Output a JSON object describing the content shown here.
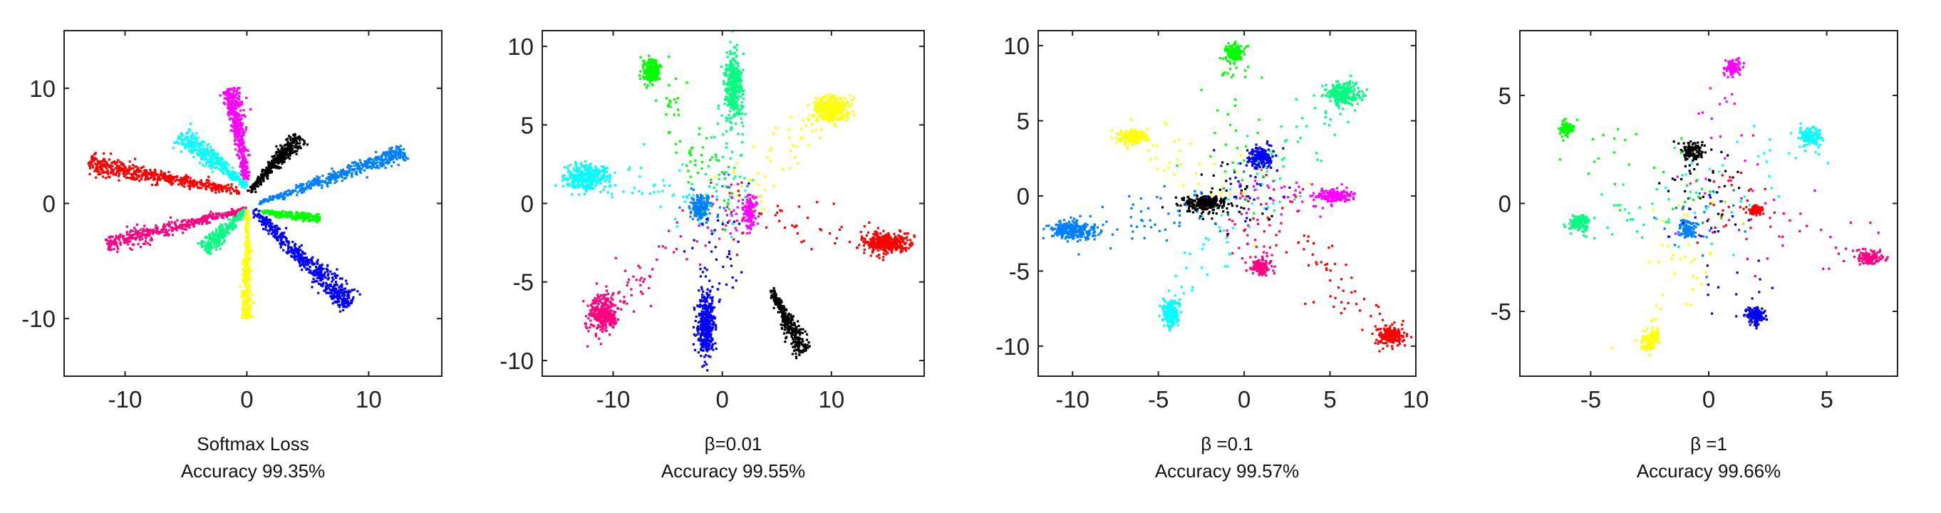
{
  "colors": {
    "c0": "#ff0000",
    "c1": "#ff0080",
    "c2": "#00ffff",
    "c3": "#ff00ff",
    "c4": "#000000",
    "c5": "#0080ff",
    "c6": "#00ff80",
    "c7": "#0000ff",
    "c8": "#00ff00",
    "c9": "#ffff00"
  },
  "chart_data": [
    {
      "type": "scatter",
      "caption_line1": "Softmax Loss",
      "caption_line2": "Accuracy 99.35%",
      "xlim": [
        -15,
        16
      ],
      "ylim": [
        -15,
        15
      ],
      "xticks": [
        -10,
        0,
        10
      ],
      "yticks": [
        -10,
        0,
        10
      ],
      "grid": false,
      "series": [
        {
          "color": "c0",
          "shape": "ray",
          "from": [
            -0.5,
            1.0
          ],
          "to": [
            -13.0,
            3.5
          ],
          "count": 500,
          "spread": 0.45
        },
        {
          "color": "c1",
          "shape": "ray",
          "from": [
            0,
            -0.5
          ],
          "to": [
            -11.5,
            -3.5
          ],
          "count": 420,
          "spread": 0.4
        },
        {
          "color": "c2",
          "shape": "ray",
          "from": [
            0,
            1.5
          ],
          "to": [
            -5.5,
            6.0
          ],
          "count": 380,
          "spread": 0.5
        },
        {
          "color": "c3",
          "shape": "ray",
          "from": [
            0,
            2.0
          ],
          "to": [
            -1.3,
            10.0
          ],
          "count": 420,
          "spread": 0.4
        },
        {
          "color": "c4",
          "shape": "ray",
          "from": [
            0.2,
            1.0
          ],
          "to": [
            4.3,
            5.8
          ],
          "count": 380,
          "spread": 0.35
        },
        {
          "color": "c5",
          "shape": "ray",
          "from": [
            1.0,
            0.0
          ],
          "to": [
            13.0,
            4.5
          ],
          "count": 460,
          "spread": 0.4
        },
        {
          "color": "c6",
          "shape": "ray",
          "from": [
            0,
            -0.5
          ],
          "to": [
            -3.5,
            -4.0
          ],
          "count": 250,
          "spread": 0.4
        },
        {
          "color": "c8",
          "shape": "ray",
          "from": [
            1.0,
            -0.7
          ],
          "to": [
            6.0,
            -1.3
          ],
          "count": 220,
          "spread": 0.25
        },
        {
          "color": "c7",
          "shape": "ray",
          "from": [
            0.5,
            -0.5
          ],
          "to": [
            8.5,
            -8.8
          ],
          "count": 520,
          "spread": 0.55
        },
        {
          "color": "c9",
          "shape": "ray",
          "from": [
            0,
            -0.5
          ],
          "to": [
            0.0,
            -10.0
          ],
          "count": 300,
          "spread": 0.25
        }
      ]
    },
    {
      "type": "scatter",
      "caption_line1": "β=0.01",
      "caption_line2": "Accuracy 99.55%",
      "xlim": [
        -16.5,
        18.5
      ],
      "ylim": [
        -11,
        11
      ],
      "xticks": [
        -10,
        0,
        10
      ],
      "yticks": [
        -10,
        -5,
        0,
        5,
        10
      ],
      "grid": false,
      "series": [
        {
          "color": "c0",
          "shape": "blob",
          "center": [
            15.0,
            -2.5
          ],
          "sd": [
            1.0,
            0.3
          ],
          "count": 380,
          "stray": 60
        },
        {
          "color": "c1",
          "shape": "blob",
          "center": [
            -11.0,
            -7.0
          ],
          "sd": [
            0.7,
            0.6
          ],
          "count": 330,
          "stray": 60
        },
        {
          "color": "c2",
          "shape": "blob",
          "center": [
            -12.5,
            1.7
          ],
          "sd": [
            1.0,
            0.4
          ],
          "count": 330,
          "stray": 60
        },
        {
          "color": "c3",
          "shape": "blob",
          "center": [
            2.5,
            -0.5
          ],
          "sd": [
            0.3,
            0.5
          ],
          "count": 150,
          "stray": 30
        },
        {
          "color": "c4",
          "shape": "ray",
          "from": [
            4.5,
            -5.5
          ],
          "to": [
            7.5,
            -9.5
          ],
          "count": 320,
          "spread": 0.4
        },
        {
          "color": "c5",
          "shape": "blob",
          "center": [
            -2.0,
            -0.3
          ],
          "sd": [
            0.4,
            0.4
          ],
          "count": 170,
          "stray": 20
        },
        {
          "color": "c6",
          "shape": "blob",
          "center": [
            1.0,
            7.5
          ],
          "sd": [
            0.4,
            1.0
          ],
          "count": 330,
          "stray": 60
        },
        {
          "color": "c7",
          "shape": "blob",
          "center": [
            -1.5,
            -7.8
          ],
          "sd": [
            0.4,
            1.0
          ],
          "count": 380,
          "stray": 50
        },
        {
          "color": "c8",
          "shape": "blob",
          "center": [
            -6.5,
            8.5
          ],
          "sd": [
            0.4,
            0.4
          ],
          "count": 220,
          "stray": 60
        },
        {
          "color": "c9",
          "shape": "blob",
          "center": [
            10.0,
            6.0
          ],
          "sd": [
            0.8,
            0.4
          ],
          "count": 330,
          "stray": 60
        }
      ]
    },
    {
      "type": "scatter",
      "caption_line1": "β =0.1",
      "caption_line2": "Accuracy 99.57%",
      "xlim": [
        -12,
        10
      ],
      "ylim": [
        -12,
        11
      ],
      "xticks": [
        -10,
        -5,
        0,
        5,
        10
      ],
      "yticks": [
        -10,
        -5,
        0,
        5,
        10
      ],
      "grid": false,
      "series": [
        {
          "color": "c0",
          "shape": "blob",
          "center": [
            8.5,
            -9.3
          ],
          "sd": [
            0.4,
            0.3
          ],
          "count": 200,
          "stray": 70
        },
        {
          "color": "c1",
          "shape": "blob",
          "center": [
            1.0,
            -4.7
          ],
          "sd": [
            0.25,
            0.3
          ],
          "count": 130,
          "stray": 40
        },
        {
          "color": "c2",
          "shape": "blob",
          "center": [
            -4.3,
            -7.8
          ],
          "sd": [
            0.25,
            0.5
          ],
          "count": 180,
          "stray": 40
        },
        {
          "color": "c3",
          "shape": "blob",
          "center": [
            5.3,
            0.0
          ],
          "sd": [
            0.5,
            0.2
          ],
          "count": 180,
          "stray": 40
        },
        {
          "color": "c4",
          "shape": "blob",
          "center": [
            -2.3,
            -0.5
          ],
          "sd": [
            0.7,
            0.25
          ],
          "count": 220,
          "stray": 40
        },
        {
          "color": "c5",
          "shape": "blob",
          "center": [
            -10.0,
            -2.3
          ],
          "sd": [
            0.7,
            0.3
          ],
          "count": 260,
          "stray": 60
        },
        {
          "color": "c6",
          "shape": "blob",
          "center": [
            5.8,
            6.8
          ],
          "sd": [
            0.5,
            0.4
          ],
          "count": 220,
          "stray": 50
        },
        {
          "color": "c7",
          "shape": "blob",
          "center": [
            1.0,
            2.6
          ],
          "sd": [
            0.35,
            0.35
          ],
          "count": 190,
          "stray": 40
        },
        {
          "color": "c8",
          "shape": "blob",
          "center": [
            -0.6,
            9.5
          ],
          "sd": [
            0.25,
            0.3
          ],
          "count": 140,
          "stray": 40
        },
        {
          "color": "c9",
          "shape": "blob",
          "center": [
            -6.5,
            3.9
          ],
          "sd": [
            0.4,
            0.25
          ],
          "count": 150,
          "stray": 40
        }
      ]
    },
    {
      "type": "scatter",
      "caption_line1": "β =1",
      "caption_line2": "Accuracy 99.66%",
      "xlim": [
        -8,
        8
      ],
      "ylim": [
        -8,
        8
      ],
      "xticks": [
        -5,
        0,
        5
      ],
      "yticks": [
        -5,
        0,
        5
      ],
      "grid": false,
      "series": [
        {
          "color": "c0",
          "shape": "blob",
          "center": [
            2.0,
            -0.3
          ],
          "sd": [
            0.15,
            0.1
          ],
          "count": 90,
          "stray": 25
        },
        {
          "color": "c1",
          "shape": "blob",
          "center": [
            6.8,
            -2.5
          ],
          "sd": [
            0.25,
            0.15
          ],
          "count": 120,
          "stray": 40
        },
        {
          "color": "c2",
          "shape": "blob",
          "center": [
            4.3,
            3.1
          ],
          "sd": [
            0.25,
            0.2
          ],
          "count": 120,
          "stray": 30
        },
        {
          "color": "c3",
          "shape": "blob",
          "center": [
            1.0,
            6.3
          ],
          "sd": [
            0.15,
            0.2
          ],
          "count": 90,
          "stray": 30
        },
        {
          "color": "c4",
          "shape": "blob",
          "center": [
            -0.7,
            2.4
          ],
          "sd": [
            0.2,
            0.2
          ],
          "count": 120,
          "stray": 40
        },
        {
          "color": "c5",
          "shape": "blob",
          "center": [
            -0.9,
            -1.2
          ],
          "sd": [
            0.15,
            0.2
          ],
          "count": 100,
          "stray": 25
        },
        {
          "color": "c6",
          "shape": "blob",
          "center": [
            -5.5,
            -0.9
          ],
          "sd": [
            0.2,
            0.2
          ],
          "count": 120,
          "stray": 40
        },
        {
          "color": "c7",
          "shape": "blob",
          "center": [
            2.0,
            -5.2
          ],
          "sd": [
            0.2,
            0.2
          ],
          "count": 140,
          "stray": 30
        },
        {
          "color": "c8",
          "shape": "blob",
          "center": [
            -6.0,
            3.5
          ],
          "sd": [
            0.15,
            0.15
          ],
          "count": 90,
          "stray": 30
        },
        {
          "color": "c9",
          "shape": "blob",
          "center": [
            -2.5,
            -6.3
          ],
          "sd": [
            0.2,
            0.25
          ],
          "count": 110,
          "stray": 40
        }
      ]
    }
  ]
}
